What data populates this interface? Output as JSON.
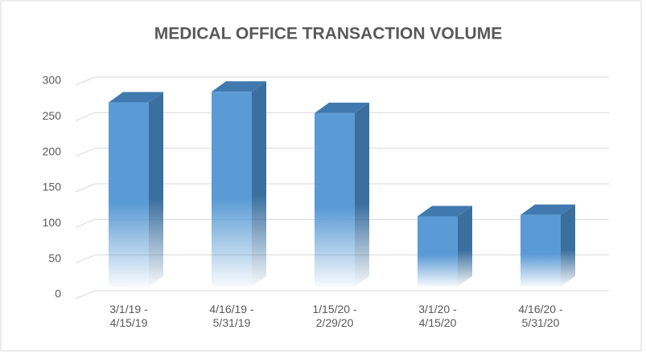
{
  "chart_data": {
    "type": "bar3d",
    "title": "MEDICAL OFFICE TRANSACTION VOLUME",
    "categories": [
      "3/1/19 - 4/15/19",
      "4/16/19 - 5/31/19",
      "1/15/20 - 2/29/20",
      "3/1/20 - 4/15/20",
      "4/16/20 - 5/31/20"
    ],
    "values": [
      270,
      285,
      255,
      110,
      112
    ],
    "color": "#5b9bd5",
    "ylim": [
      0,
      300
    ],
    "yticks": [
      0,
      50,
      100,
      150,
      200,
      250,
      300
    ],
    "grid": true
  }
}
